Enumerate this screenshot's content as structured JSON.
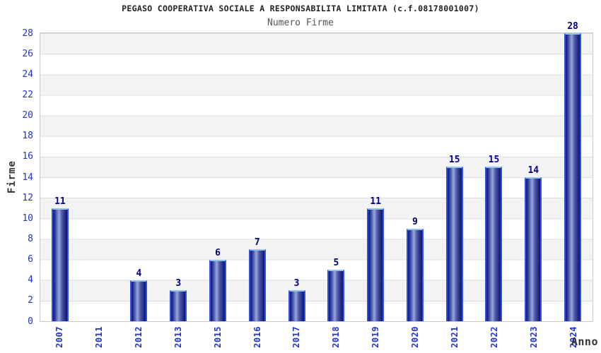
{
  "title": "PEGASO COOPERATIVA SOCIALE A RESPONSABILITA LIMITATA (c.f.08178001007)",
  "subtitle": "Numero Firme",
  "chart_data": {
    "type": "bar",
    "categories": [
      "2007",
      "2011",
      "2012",
      "2013",
      "2015",
      "2016",
      "2017",
      "2018",
      "2019",
      "2020",
      "2021",
      "2022",
      "2023",
      "2024"
    ],
    "values": [
      11,
      0,
      4,
      3,
      6,
      7,
      3,
      5,
      11,
      9,
      15,
      15,
      14,
      28
    ],
    "title": "PEGASO COOPERATIVA SOCIALE A RESPONSABILITA LIMITATA (c.f.08178001007)",
    "subtitle": "Numero Firme",
    "xlabel": "Anno",
    "ylabel": "Firme",
    "ylim": [
      0,
      28
    ],
    "y_ticks": [
      0,
      2,
      4,
      6,
      8,
      10,
      12,
      14,
      16,
      18,
      20,
      22,
      24,
      26,
      28
    ],
    "grid": "horizontal alternating bands every 2 units, gray and white, light gray gridlines",
    "legend": "none",
    "bar_value_labels": true
  },
  "colors": {
    "tick_label": "#2233cc",
    "value_label": "#000080",
    "bar_edge": "#2f55e0",
    "bar_cap": "#93c2ec",
    "bar_dark": "#15157c",
    "bar_light": "#9aa8da",
    "band_gray": "#f3f3f3",
    "grid_line": "#dcdcdc",
    "plot_border": "#c9c9c9",
    "title_color": "#222222",
    "subtitle_color": "#555555",
    "axis_title_color": "#333333"
  }
}
